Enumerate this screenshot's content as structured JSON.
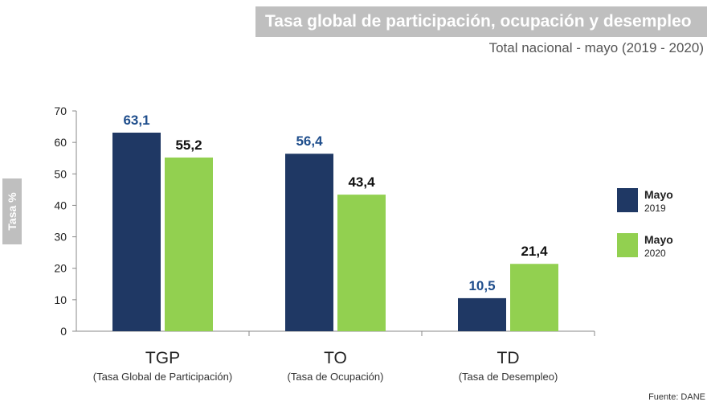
{
  "header": {
    "title": "Tasa global de participación, ocupación y desempleo",
    "subtitle": "Total nacional - mayo (2019 - 2020)"
  },
  "footer": {
    "source": "Fuente: DANE"
  },
  "colors": {
    "series_2019": "#1f3864",
    "series_2020": "#92d050"
  },
  "legend": {
    "items": [
      {
        "name": "Mayo",
        "year": "2019",
        "color": "#1f3864"
      },
      {
        "name": "Mayo",
        "year": "2020",
        "color": "#92d050"
      }
    ]
  },
  "chart_data": {
    "type": "bar",
    "title": "Tasa global de participación, ocupación y desempleo",
    "ylabel": "Tasa %",
    "ylim": [
      0,
      70
    ],
    "yticks": [
      "0",
      "10",
      "20",
      "30",
      "40",
      "50",
      "60",
      "70"
    ],
    "categories": [
      {
        "code": "TGP",
        "label": "(Tasa Global de Participación)"
      },
      {
        "code": "TO",
        "label": "(Tasa de Ocupación)"
      },
      {
        "code": "TD",
        "label": "(Tasa de Desempleo)"
      }
    ],
    "series": [
      {
        "name": "Mayo 2019",
        "color": "#1f3864",
        "labelColor": "#1f4e8c",
        "values": [
          63.1,
          56.4,
          10.5
        ],
        "labels": [
          "63,1",
          "56,4",
          "10,5"
        ]
      },
      {
        "name": "Mayo 2020",
        "color": "#92d050",
        "labelColor": "#111111",
        "values": [
          55.2,
          43.4,
          21.4
        ],
        "labels": [
          "55,2",
          "43,4",
          "21,4"
        ]
      }
    ],
    "legend_position": "right",
    "grid": false
  }
}
